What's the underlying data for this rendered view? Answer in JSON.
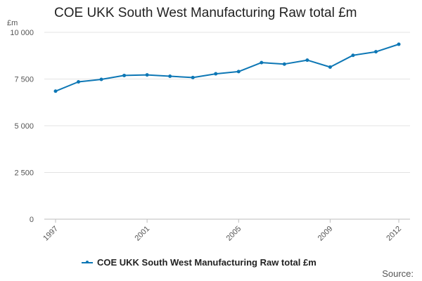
{
  "chart_data": {
    "type": "line",
    "title": "COE UKK South West Manufacturing Raw total £m",
    "unit_label": "£m",
    "xlabel": "",
    "ylabel": "",
    "x": [
      1997,
      1998,
      1999,
      2000,
      2001,
      2002,
      2003,
      2004,
      2005,
      2006,
      2007,
      2008,
      2009,
      2010,
      2011,
      2012
    ],
    "x_tick_values": [
      1997,
      2001,
      2005,
      2009,
      2012
    ],
    "x_tick_labels": [
      "1997",
      "2001",
      "2005",
      "2009",
      "2012"
    ],
    "ylim": [
      0,
      10000
    ],
    "y_tick_values": [
      0,
      2500,
      5000,
      7500,
      10000
    ],
    "y_tick_labels": [
      "0",
      "2 500",
      "5 000",
      "7 500",
      "10 000"
    ],
    "grid": true,
    "legend_position": "bottom",
    "series": [
      {
        "name": "COE UKK South West Manufacturing Raw total £m",
        "color": "#0d77b5",
        "values": [
          6850,
          7350,
          7480,
          7690,
          7720,
          7650,
          7580,
          7780,
          7900,
          8380,
          8300,
          8510,
          8140,
          8770,
          8960,
          9360
        ]
      }
    ]
  },
  "source_label": "Source:"
}
